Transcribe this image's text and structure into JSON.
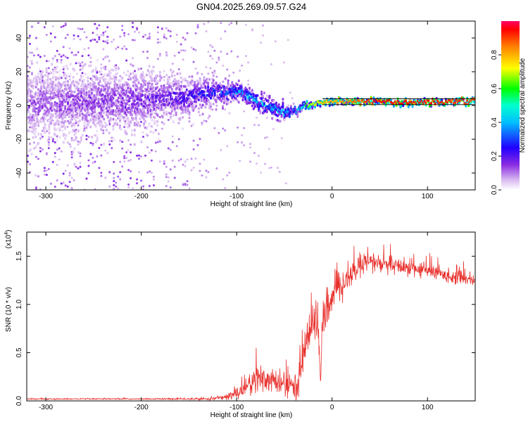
{
  "title": "GN04.2025.269.09.57.G24",
  "chart_data": [
    {
      "type": "heatmap",
      "name": "spectrogram",
      "xlabel": "Height of straight line (km)",
      "ylabel": "Frequency (Hz)",
      "xlim": [
        -320,
        150
      ],
      "ylim": [
        -50,
        50
      ],
      "xticks": [
        -300,
        -200,
        -100,
        0,
        100
      ],
      "xtick_labels": [
        "-300",
        "-200",
        "-100",
        "0",
        "100"
      ],
      "yticks": [
        -40,
        -20,
        0,
        20,
        40
      ],
      "ytick_labels": [
        "-40",
        "-20",
        "0",
        "20",
        "40"
      ],
      "colorbar": {
        "label": "Normalized spectral amplitude",
        "range": [
          0,
          1
        ],
        "ticks": [
          0.0,
          0.2,
          0.4,
          0.6,
          0.8
        ],
        "tick_labels": [
          "0.0",
          "0.2",
          "0.4",
          "0.6",
          "0.8"
        ]
      },
      "ridge": {
        "x": [
          -320,
          -250,
          -200,
          -160,
          -120,
          -100,
          -80,
          -60,
          -50,
          -40,
          -30,
          -10,
          0,
          50,
          100,
          150
        ],
        "freq": [
          1,
          2,
          3,
          5,
          8,
          8,
          3,
          -3,
          -5,
          -3,
          0,
          2,
          2,
          2,
          2,
          3
        ],
        "amplitude": [
          0.15,
          0.18,
          0.2,
          0.25,
          0.35,
          0.45,
          0.5,
          0.5,
          0.45,
          0.45,
          0.6,
          0.8,
          0.8,
          0.95,
          0.95,
          0.9
        ],
        "spread_hz": [
          30,
          28,
          25,
          18,
          10,
          8,
          7,
          7,
          6,
          4,
          3,
          2,
          2,
          2,
          2,
          2
        ]
      }
    },
    {
      "type": "line",
      "name": "snr",
      "xlabel": "Height of straight line (km)",
      "ylabel": "SNR (10 * v/v)",
      "yscale_label": "(x10",
      "yscale_exp": "4",
      "xlim": [
        -320,
        150
      ],
      "ylim": [
        0,
        1.75
      ],
      "xticks": [
        -300,
        -200,
        -100,
        0,
        100
      ],
      "xtick_labels": [
        "-300",
        "-200",
        "-100",
        "0",
        "100"
      ],
      "yticks": [
        0.0,
        0.5,
        1.0,
        1.5
      ],
      "ytick_labels": [
        "0.0",
        "0.5",
        "1.0",
        "1.5"
      ],
      "color": "#e8302c",
      "series": [
        {
          "name": "SNR envelope",
          "x": [
            -320,
            -200,
            -130,
            -110,
            -100,
            -90,
            -80,
            -70,
            -60,
            -50,
            -40,
            -35,
            -30,
            -25,
            -20,
            -15,
            -12,
            -10,
            -5,
            0,
            10,
            20,
            30,
            40,
            50,
            60,
            80,
            100,
            120,
            150
          ],
          "y": [
            0.02,
            0.02,
            0.02,
            0.04,
            0.08,
            0.15,
            0.2,
            0.25,
            0.2,
            0.15,
            0.15,
            0.2,
            0.5,
            0.7,
            0.85,
            0.8,
            0.2,
            0.9,
            0.9,
            1.05,
            1.2,
            1.3,
            1.4,
            1.45,
            1.42,
            1.4,
            1.38,
            1.35,
            1.3,
            1.25
          ],
          "noise": [
            0.005,
            0.005,
            0.01,
            0.03,
            0.06,
            0.1,
            0.14,
            0.16,
            0.12,
            0.1,
            0.1,
            0.12,
            0.2,
            0.2,
            0.2,
            0.2,
            0.1,
            0.15,
            0.15,
            0.15,
            0.12,
            0.1,
            0.1,
            0.1,
            0.08,
            0.08,
            0.07,
            0.07,
            0.06,
            0.06
          ]
        }
      ]
    }
  ]
}
